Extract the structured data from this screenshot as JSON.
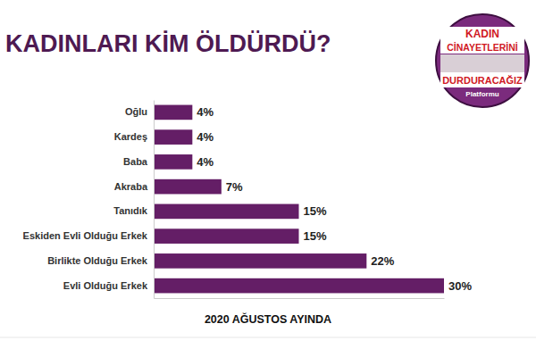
{
  "chart_data": {
    "type": "bar",
    "title": "KADINLARI KİM ÖLDÜRDÜ?",
    "x_label": "2020 AĞUSTOS AYINDA",
    "annotations": [
      "KADIN",
      "CİNAYETLERİNİ",
      "DURDURACAĞIZ",
      "Platformu"
    ],
    "categories": [
      "Oğlu",
      "Kardeş",
      "Baba",
      "Akraba",
      "Tanıdık",
      "Eskiden Evli Olduğu Erkek",
      "Birlikte Olduğu Erkek",
      "Evli Olduğu Erkek"
    ],
    "values": [
      4,
      4,
      4,
      7,
      15,
      15,
      22,
      30
    ],
    "value_labels": [
      "4%",
      "4%",
      "4%",
      "7%",
      "15%",
      "15%",
      "22%",
      "30%"
    ],
    "color": "#641e66",
    "orientation": "horizontal",
    "ylim": [
      0,
      30
    ],
    "yticks": [],
    "grid": false,
    "data_labels": true,
    "tick_labels": "x"
  }
}
